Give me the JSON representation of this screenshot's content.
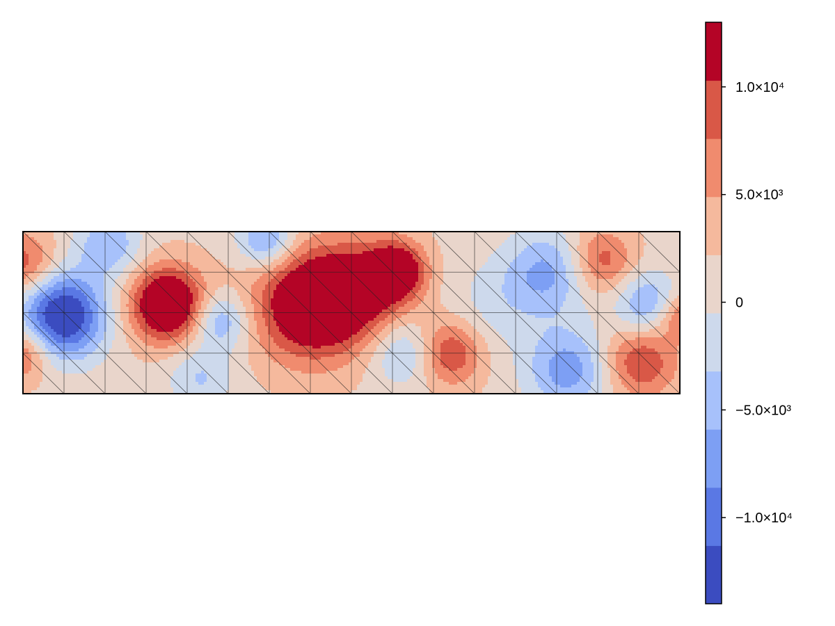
{
  "chart_data": {
    "type": "heatmap",
    "title": "",
    "xlabel": "",
    "ylabel": "",
    "grid": true,
    "mesh": {
      "columns": 16,
      "rows": 4,
      "diagonals": "top-left to bottom-right in every cell"
    },
    "colormap": "coolwarm",
    "colorbar": {
      "placement": "right",
      "range": [
        -14000,
        13000
      ],
      "levels": [
        -14000,
        -11300,
        -8600,
        -5900,
        -3200,
        -500,
        2200,
        4900,
        7600,
        10300,
        13000
      ],
      "colors": [
        "#3b4cc0",
        "#5a78e4",
        "#7d9ff4",
        "#a7c1fb",
        "#cdd9ec",
        "#e9d5cb",
        "#f5b99d",
        "#f08b6e",
        "#d95847",
        "#b40426"
      ],
      "ticks": [
        {
          "value": -10000,
          "label": "−1.0×10⁴"
        },
        {
          "value": -5000,
          "label": "−5.0×10³"
        },
        {
          "value": 0,
          "label": "0"
        },
        {
          "value": 5000,
          "label": "5.0×10³"
        },
        {
          "value": 10000,
          "label": "1.0×10⁴"
        }
      ]
    },
    "field": {
      "background": 1500,
      "features": [
        {
          "x": 0.06,
          "y": 0.52,
          "peak": -17000,
          "spread": 0.045
        },
        {
          "x": 0.3,
          "y": 0.55,
          "peak": -8000,
          "spread": 0.03
        },
        {
          "x": 0.13,
          "y": 0.08,
          "peak": -7000,
          "spread": 0.035
        },
        {
          "x": 0.37,
          "y": 0.05,
          "peak": -9000,
          "spread": 0.03
        },
        {
          "x": 0.8,
          "y": 0.25,
          "peak": -8000,
          "spread": 0.045
        },
        {
          "x": 0.83,
          "y": 0.85,
          "peak": -9000,
          "spread": 0.045
        },
        {
          "x": 0.58,
          "y": 0.75,
          "peak": -6000,
          "spread": 0.035
        },
        {
          "x": 0.95,
          "y": 0.45,
          "peak": -8000,
          "spread": 0.035
        },
        {
          "x": 0.27,
          "y": 0.9,
          "peak": -5000,
          "spread": 0.035
        },
        {
          "x": 0.72,
          "y": 0.45,
          "peak": -3000,
          "spread": 0.05
        },
        {
          "x": 0.22,
          "y": 0.45,
          "peak": 16000,
          "spread": 0.04
        },
        {
          "x": 0.44,
          "y": 0.45,
          "peak": 15000,
          "spread": 0.06
        },
        {
          "x": 0.52,
          "y": 0.35,
          "peak": 8000,
          "spread": 0.05
        },
        {
          "x": 0.57,
          "y": 0.24,
          "peak": 12000,
          "spread": 0.03
        },
        {
          "x": 0.65,
          "y": 0.75,
          "peak": 9000,
          "spread": 0.035
        },
        {
          "x": 0.88,
          "y": 0.18,
          "peak": 8000,
          "spread": 0.035
        },
        {
          "x": 0.94,
          "y": 0.8,
          "peak": 9000,
          "spread": 0.04
        },
        {
          "x": 0.0,
          "y": 0.2,
          "peak": 8000,
          "spread": 0.035
        },
        {
          "x": 0.0,
          "y": 0.75,
          "peak": 8000,
          "spread": 0.03
        },
        {
          "x": 1.0,
          "y": 0.52,
          "peak": 7000,
          "spread": 0.025
        }
      ]
    }
  }
}
